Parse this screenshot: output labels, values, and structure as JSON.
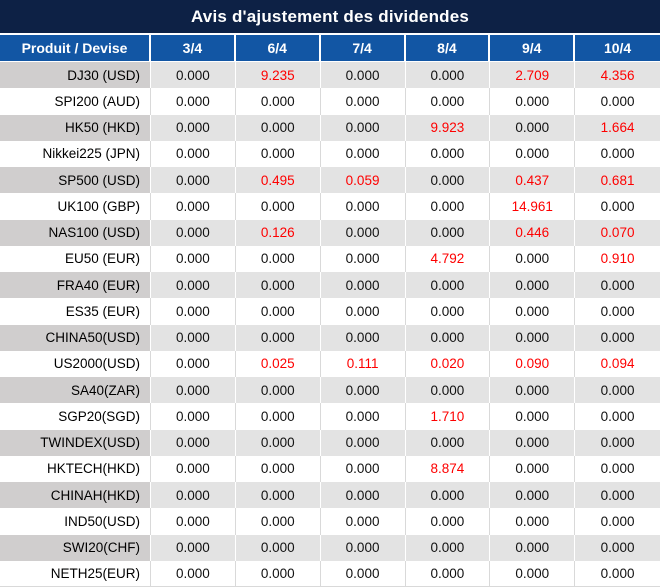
{
  "title": "Avis d'ajustement des dividendes",
  "table": {
    "product_header": "Produit / Devise",
    "date_columns": [
      "3/4",
      "6/4",
      "7/4",
      "8/4",
      "9/4",
      "10/4"
    ],
    "rows": [
      {
        "product": "DJ30 (USD)",
        "values": [
          "0.000",
          "9.235",
          "0.000",
          "0.000",
          "2.709",
          "4.356"
        ]
      },
      {
        "product": "SPI200 (AUD)",
        "values": [
          "0.000",
          "0.000",
          "0.000",
          "0.000",
          "0.000",
          "0.000"
        ]
      },
      {
        "product": "HK50 (HKD)",
        "values": [
          "0.000",
          "0.000",
          "0.000",
          "9.923",
          "0.000",
          "1.664"
        ]
      },
      {
        "product": "Nikkei225 (JPN)",
        "values": [
          "0.000",
          "0.000",
          "0.000",
          "0.000",
          "0.000",
          "0.000"
        ]
      },
      {
        "product": "SP500 (USD)",
        "values": [
          "0.000",
          "0.495",
          "0.059",
          "0.000",
          "0.437",
          "0.681"
        ]
      },
      {
        "product": "UK100 (GBP)",
        "values": [
          "0.000",
          "0.000",
          "0.000",
          "0.000",
          "14.961",
          "0.000"
        ]
      },
      {
        "product": "NAS100 (USD)",
        "values": [
          "0.000",
          "0.126",
          "0.000",
          "0.000",
          "0.446",
          "0.070"
        ]
      },
      {
        "product": "EU50 (EUR)",
        "values": [
          "0.000",
          "0.000",
          "0.000",
          "4.792",
          "0.000",
          "0.910"
        ]
      },
      {
        "product": "FRA40 (EUR)",
        "values": [
          "0.000",
          "0.000",
          "0.000",
          "0.000",
          "0.000",
          "0.000"
        ]
      },
      {
        "product": "ES35 (EUR)",
        "values": [
          "0.000",
          "0.000",
          "0.000",
          "0.000",
          "0.000",
          "0.000"
        ]
      },
      {
        "product": "CHINA50(USD)",
        "values": [
          "0.000",
          "0.000",
          "0.000",
          "0.000",
          "0.000",
          "0.000"
        ]
      },
      {
        "product": "US2000(USD)",
        "values": [
          "0.000",
          "0.025",
          "0.111",
          "0.020",
          "0.090",
          "0.094"
        ]
      },
      {
        "product": "SA40(ZAR)",
        "values": [
          "0.000",
          "0.000",
          "0.000",
          "0.000",
          "0.000",
          "0.000"
        ]
      },
      {
        "product": "SGP20(SGD)",
        "values": [
          "0.000",
          "0.000",
          "0.000",
          "1.710",
          "0.000",
          "0.000"
        ]
      },
      {
        "product": "TWINDEX(USD)",
        "values": [
          "0.000",
          "0.000",
          "0.000",
          "0.000",
          "0.000",
          "0.000"
        ]
      },
      {
        "product": "HKTECH(HKD)",
        "values": [
          "0.000",
          "0.000",
          "0.000",
          "8.874",
          "0.000",
          "0.000"
        ]
      },
      {
        "product": "CHINAH(HKD)",
        "values": [
          "0.000",
          "0.000",
          "0.000",
          "0.000",
          "0.000",
          "0.000"
        ]
      },
      {
        "product": "IND50(USD)",
        "values": [
          "0.000",
          "0.000",
          "0.000",
          "0.000",
          "0.000",
          "0.000"
        ]
      },
      {
        "product": "SWI20(CHF)",
        "values": [
          "0.000",
          "0.000",
          "0.000",
          "0.000",
          "0.000",
          "0.000"
        ]
      },
      {
        "product": "NETH25(EUR)",
        "values": [
          "0.000",
          "0.000",
          "0.000",
          "0.000",
          "0.000",
          "0.000"
        ]
      }
    ]
  },
  "colors": {
    "title_bg": "#0d2145",
    "header_bg": "#1256a4",
    "stripe_value_bg": "#e3e3e3",
    "stripe_product_bg": "#d0cece",
    "white_row_bg": "#ffffff",
    "grid_line": "#d9d9d9",
    "highlight_red": "#fe0000",
    "text_dark": "#111111",
    "header_text": "#ffffff"
  }
}
